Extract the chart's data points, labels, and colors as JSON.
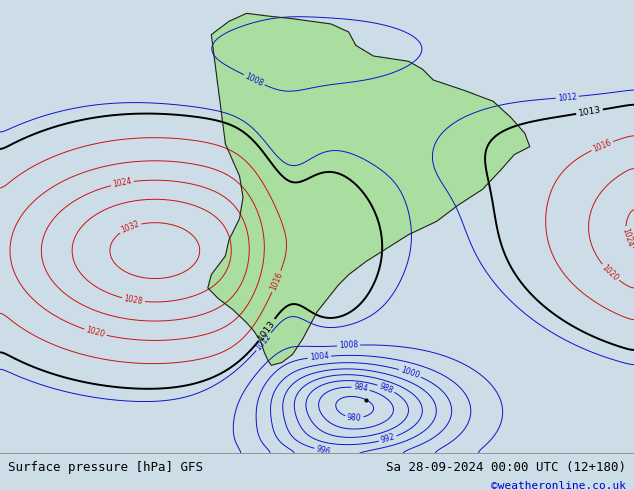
{
  "title_left": "Surface pressure [hPa] GFS",
  "title_right": "Sa 28-09-2024 00:00 UTC (12+180)",
  "watermark": "©weatheronline.co.uk",
  "bg_color": "#ccdde8",
  "land_color": "#aadda0",
  "border_color": "#222222",
  "figsize": [
    6.34,
    4.9
  ],
  "dpi": 100,
  "bottom_bar_color": "#e0e0e0",
  "contour_blue_color": "#1111cc",
  "contour_red_color": "#cc1111",
  "contour_black_color": "#000000",
  "title_fontsize": 9,
  "watermark_color": "#0000cc",
  "watermark_fontsize": 8,
  "xlim": [
    -110,
    -20
  ],
  "ylim": [
    -70,
    15
  ]
}
